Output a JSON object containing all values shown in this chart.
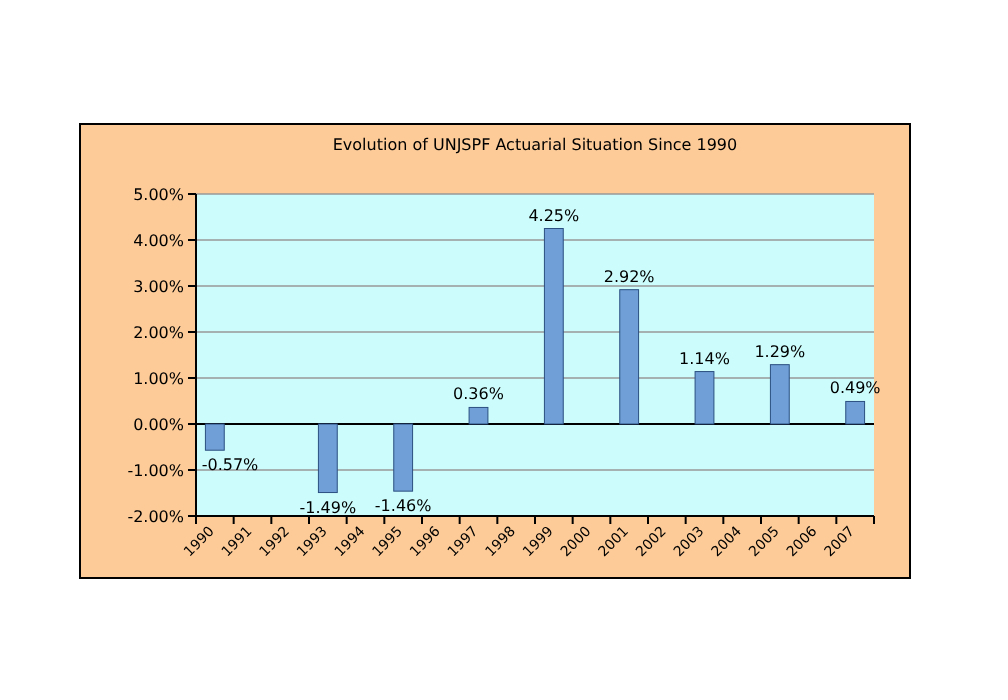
{
  "chart_data": {
    "type": "bar",
    "title": "Evolution of UNJSPF Actuarial Situation Since 1990",
    "categories": [
      "1990",
      "1991",
      "1992",
      "1993",
      "1994",
      "1995",
      "1996",
      "1997",
      "1998",
      "1999",
      "2000",
      "2001",
      "2002",
      "2003",
      "2004",
      "2005",
      "2006",
      "2007"
    ],
    "values": [
      -0.57,
      null,
      null,
      -1.49,
      null,
      -1.46,
      null,
      0.36,
      null,
      4.25,
      null,
      2.92,
      null,
      1.14,
      null,
      1.29,
      null,
      0.49
    ],
    "value_labels": [
      "-0.57%",
      null,
      null,
      "-1.49%",
      null,
      "-1.46%",
      null,
      "0.36%",
      null,
      "4.25%",
      null,
      "2.92%",
      null,
      "1.14%",
      null,
      "1.29%",
      null,
      "0.49%"
    ],
    "color": "#6f9fd6",
    "ylim": [
      -2,
      5
    ],
    "yticks": [
      {
        "value": -2,
        "label": "-2.00%"
      },
      {
        "value": -1,
        "label": "-1.00%"
      },
      {
        "value": 0,
        "label": "0.00%"
      },
      {
        "value": 1,
        "label": "1.00%"
      },
      {
        "value": 2,
        "label": "2.00%"
      },
      {
        "value": 3,
        "label": "3.00%"
      },
      {
        "value": 4,
        "label": "4.00%"
      },
      {
        "value": 5,
        "label": "5.00%"
      }
    ],
    "grid": "y"
  }
}
